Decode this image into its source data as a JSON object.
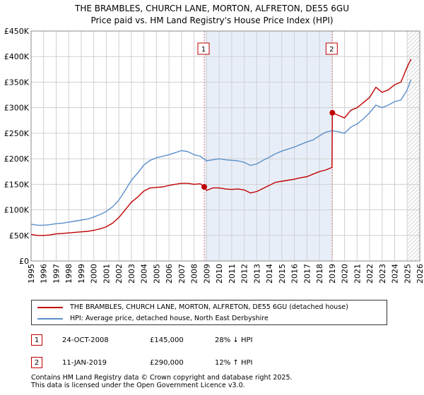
{
  "chart_data": {
    "type": "line",
    "title": "THE BRAMBLES, CHURCH LANE, MORTON, ALFRETON, DE55 6GU",
    "subtitle": "Price paid vs. HM Land Registry's House Price Index (HPI)",
    "xlabel": "",
    "ylabel": "",
    "xlim": [
      1995,
      2026
    ],
    "ylim": [
      0,
      450000
    ],
    "x_ticks": [
      1995,
      1996,
      1997,
      1998,
      1999,
      2000,
      2001,
      2002,
      2003,
      2004,
      2005,
      2006,
      2007,
      2008,
      2009,
      2010,
      2011,
      2012,
      2013,
      2014,
      2015,
      2016,
      2017,
      2018,
      2019,
      2020,
      2021,
      2022,
      2023,
      2024,
      2025,
      2026
    ],
    "y_ticks": [
      0,
      50000,
      100000,
      150000,
      200000,
      250000,
      300000,
      350000,
      400000,
      450000
    ],
    "y_tick_labels": [
      "£0",
      "£50K",
      "£100K",
      "£150K",
      "£200K",
      "£250K",
      "£300K",
      "£350K",
      "£400K",
      "£450K"
    ],
    "grid": true,
    "shaded_region": [
      2008.81,
      2019.03
    ],
    "hatched_from": 2025.0,
    "colors": {
      "property": "#c00000",
      "hpi": "#5b8fcb",
      "shade": "#e8eef8",
      "grid": "#d0d0d0"
    },
    "series": [
      {
        "name": "THE BRAMBLES, CHURCH LANE, MORTON, ALFRETON, DE55 6GU (detached house)",
        "color": "#c00000",
        "x": [
          1995,
          1995.5,
          1996,
          1996.5,
          1997,
          1997.5,
          1998,
          1998.5,
          1999,
          1999.5,
          2000,
          2000.5,
          2001,
          2001.5,
          2002,
          2002.5,
          2003,
          2003.5,
          2004,
          2004.5,
          2005,
          2005.5,
          2006,
          2006.5,
          2007,
          2007.5,
          2008,
          2008.5,
          2008.81,
          2009,
          2009.5,
          2010,
          2010.5,
          2011,
          2011.5,
          2012,
          2012.5,
          2013,
          2013.5,
          2014,
          2014.5,
          2015,
          2015.5,
          2016,
          2016.5,
          2017,
          2017.5,
          2018,
          2018.5,
          2019.0,
          2019.03,
          2019.5,
          2020,
          2020.5,
          2021,
          2021.5,
          2022,
          2022.5,
          2023,
          2023.5,
          2024,
          2024.5,
          2025,
          2025.3
        ],
        "values": [
          52000,
          50000,
          50000,
          51000,
          53000,
          54000,
          55000,
          56000,
          57000,
          58000,
          60000,
          63000,
          67000,
          74000,
          85000,
          100000,
          115000,
          125000,
          137000,
          143000,
          144000,
          145000,
          148000,
          150000,
          152000,
          152000,
          150000,
          151000,
          145000,
          138000,
          143000,
          143000,
          141000,
          140000,
          141000,
          139000,
          133000,
          136000,
          142000,
          148000,
          154000,
          156000,
          158000,
          160000,
          163000,
          165000,
          170000,
          175000,
          178000,
          183000,
          290000,
          285000,
          280000,
          295000,
          300000,
          310000,
          320000,
          340000,
          330000,
          335000,
          345000,
          350000,
          380000,
          395000
        ]
      },
      {
        "name": "HPI: Average price, detached house, North East Derbyshire",
        "color": "#5b8fcb",
        "x": [
          1995,
          1995.5,
          1996,
          1996.5,
          1997,
          1997.5,
          1998,
          1998.5,
          1999,
          1999.5,
          2000,
          2000.5,
          2001,
          2001.5,
          2002,
          2002.5,
          2003,
          2003.5,
          2004,
          2004.5,
          2005,
          2005.5,
          2006,
          2006.5,
          2007,
          2007.5,
          2008,
          2008.5,
          2009,
          2009.5,
          2010,
          2010.5,
          2011,
          2011.5,
          2012,
          2012.5,
          2013,
          2013.5,
          2014,
          2014.5,
          2015,
          2015.5,
          2016,
          2016.5,
          2017,
          2017.5,
          2018,
          2018.5,
          2019,
          2019.5,
          2020,
          2020.5,
          2021,
          2021.5,
          2022,
          2022.5,
          2023,
          2023.5,
          2024,
          2024.5,
          2025,
          2025.3
        ],
        "values": [
          72000,
          70000,
          70000,
          71000,
          73000,
          74000,
          76000,
          78000,
          80000,
          82000,
          86000,
          91000,
          97000,
          106000,
          119000,
          138000,
          158000,
          172000,
          188000,
          197000,
          202000,
          205000,
          208000,
          212000,
          216000,
          214000,
          208000,
          205000,
          196000,
          198000,
          200000,
          198000,
          197000,
          196000,
          193000,
          187000,
          190000,
          197000,
          203000,
          210000,
          215000,
          219000,
          223000,
          228000,
          233000,
          237000,
          245000,
          252000,
          255000,
          253000,
          250000,
          262000,
          268000,
          278000,
          290000,
          305000,
          300000,
          305000,
          312000,
          315000,
          335000,
          355000
        ]
      }
    ],
    "sales": [
      {
        "label": "1",
        "x": 2008.81,
        "y": 145000
      },
      {
        "label": "2",
        "x": 2019.03,
        "y": 290000
      }
    ]
  },
  "legend": {
    "property": "THE BRAMBLES, CHURCH LANE, MORTON, ALFRETON, DE55 6GU (detached house)",
    "hpi": "HPI: Average price, detached house, North East Derbyshire"
  },
  "sales_table": [
    {
      "num": "1",
      "date": "24-OCT-2008",
      "price": "£145,000",
      "hpi": "28% ↓ HPI"
    },
    {
      "num": "2",
      "date": "11-JAN-2019",
      "price": "£290,000",
      "hpi": "12% ↑ HPI"
    }
  ],
  "footer": {
    "line1": "Contains HM Land Registry data © Crown copyright and database right 2025.",
    "line2": "This data is licensed under the Open Government Licence v3.0."
  }
}
